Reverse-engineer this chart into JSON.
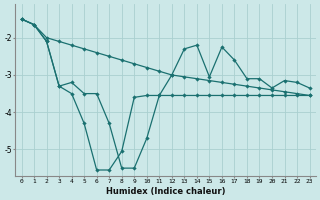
{
  "xlabel": "Humidex (Indice chaleur)",
  "bg_color": "#cce8e8",
  "grid_color": "#aad0d0",
  "line_color": "#1a7070",
  "xlim": [
    -0.5,
    23.5
  ],
  "ylim": [
    -5.7,
    -1.1
  ],
  "yticks": [
    -5,
    -4,
    -3,
    -2
  ],
  "xticks": [
    0,
    1,
    2,
    3,
    4,
    5,
    6,
    7,
    8,
    9,
    10,
    11,
    12,
    13,
    14,
    15,
    16,
    17,
    18,
    19,
    20,
    21,
    22,
    23
  ],
  "line_diag_x": [
    0,
    1,
    2,
    3,
    4,
    5,
    6,
    7,
    8,
    9,
    10,
    11,
    12,
    13,
    14,
    15,
    16,
    17,
    18,
    19,
    20,
    21,
    22,
    23
  ],
  "line_diag_y": [
    -1.5,
    -1.65,
    -2.0,
    -2.1,
    -2.2,
    -2.3,
    -2.4,
    -2.5,
    -2.6,
    -2.7,
    -2.8,
    -2.9,
    -3.0,
    -3.05,
    -3.1,
    -3.15,
    -3.2,
    -3.25,
    -3.3,
    -3.35,
    -3.4,
    -3.45,
    -3.5,
    -3.55
  ],
  "line_dip_x": [
    0,
    1,
    2,
    3,
    4,
    5,
    6,
    7,
    8,
    9,
    10,
    11,
    12,
    13,
    14,
    15,
    16,
    17,
    18,
    19,
    20,
    21,
    22,
    23
  ],
  "line_dip_y": [
    -1.5,
    -1.65,
    -2.1,
    -3.3,
    -3.2,
    -3.5,
    -3.5,
    -4.3,
    -5.5,
    -5.5,
    -4.7,
    -3.55,
    -3.55,
    -3.55,
    -3.55,
    -3.55,
    -3.55,
    -3.55,
    -3.55,
    -3.55,
    -3.55,
    -3.55,
    -3.55,
    -3.55
  ],
  "line_zig_x": [
    0,
    1,
    2,
    3,
    4,
    5,
    6,
    7,
    8,
    9,
    10,
    11,
    12,
    13,
    14,
    15,
    16,
    17,
    18,
    19,
    20,
    21,
    22,
    23
  ],
  "line_zig_y": [
    -1.5,
    -1.65,
    -2.1,
    -3.3,
    -3.5,
    -4.3,
    -5.55,
    -5.55,
    -5.05,
    -3.6,
    -3.55,
    -3.55,
    -3.0,
    -2.3,
    -2.2,
    -3.05,
    -2.25,
    -2.6,
    -3.1,
    -3.1,
    -3.35,
    -3.15,
    -3.2,
    -3.35
  ]
}
